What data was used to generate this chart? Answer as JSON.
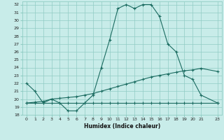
{
  "xlabel": "Humidex (Indice chaleur)",
  "bg_color": "#c8ece9",
  "grid_color": "#90ccc4",
  "line_color": "#1a6b60",
  "xlim": [
    -0.5,
    23.5
  ],
  "ylim": [
    18,
    32.4
  ],
  "xticks": [
    0,
    1,
    2,
    3,
    4,
    5,
    6,
    7,
    8,
    9,
    10,
    11,
    12,
    13,
    14,
    15,
    16,
    17,
    18,
    19,
    20,
    21,
    23
  ],
  "yticks": [
    18,
    19,
    20,
    21,
    22,
    23,
    24,
    25,
    26,
    27,
    28,
    29,
    30,
    31,
    32
  ],
  "line1_x": [
    0,
    1,
    2,
    3,
    4,
    5,
    6,
    7,
    8,
    9,
    10,
    11,
    12,
    13,
    14,
    15,
    16,
    17,
    18,
    19,
    20,
    21,
    23
  ],
  "line1_y": [
    22.0,
    21.0,
    19.5,
    20.0,
    19.5,
    18.5,
    18.5,
    19.5,
    20.5,
    24.0,
    27.5,
    31.5,
    32.0,
    31.5,
    32.0,
    32.0,
    30.5,
    27.0,
    26.0,
    23.0,
    22.5,
    20.5,
    19.5
  ],
  "line2_x": [
    0,
    1,
    2,
    3,
    4,
    5,
    6,
    7,
    8,
    9,
    10,
    11,
    12,
    13,
    14,
    15,
    16,
    17,
    18,
    19,
    20,
    21,
    23
  ],
  "line2_y": [
    19.5,
    19.5,
    19.5,
    19.5,
    19.5,
    19.5,
    19.5,
    19.5,
    19.5,
    19.5,
    19.5,
    19.5,
    19.5,
    19.5,
    19.5,
    19.5,
    19.5,
    19.5,
    19.5,
    19.5,
    19.5,
    19.5,
    19.5
  ],
  "line3_x": [
    0,
    1,
    2,
    3,
    4,
    5,
    6,
    7,
    8,
    9,
    10,
    11,
    12,
    13,
    14,
    15,
    16,
    17,
    18,
    19,
    20,
    21,
    23
  ],
  "line3_y": [
    19.5,
    19.6,
    19.7,
    20.0,
    20.1,
    20.2,
    20.3,
    20.5,
    20.7,
    21.0,
    21.3,
    21.6,
    21.9,
    22.2,
    22.5,
    22.8,
    23.0,
    23.2,
    23.4,
    23.6,
    23.7,
    23.9,
    23.5
  ]
}
